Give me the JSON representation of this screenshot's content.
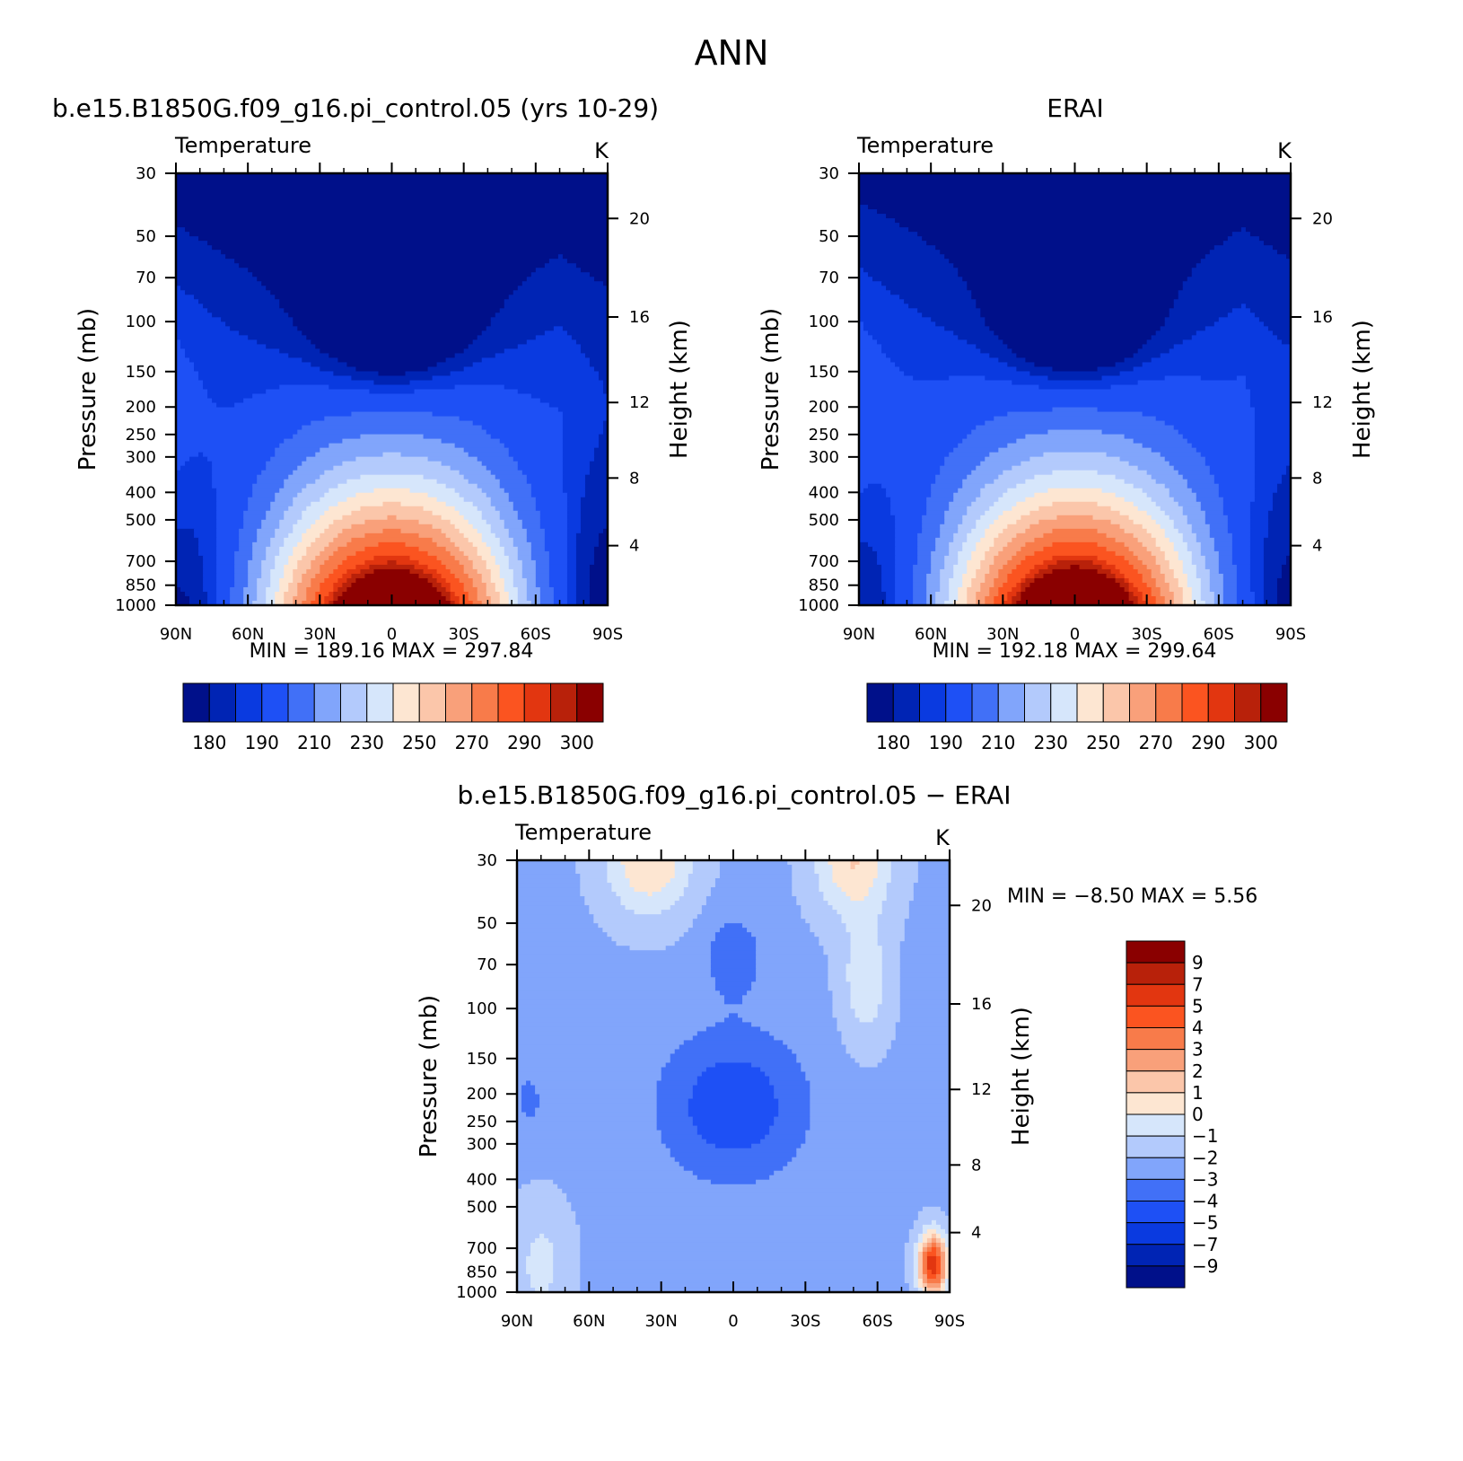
{
  "main_title": "ANN",
  "colors": {
    "abs_levels": [
      "#00108a",
      "#0024b4",
      "#0a3ae0",
      "#1e50f5",
      "#4170f7",
      "#81a5fb",
      "#b3cafc",
      "#d6e6fb",
      "#fde6d2",
      "#fbc6aa",
      "#f9a07a",
      "#f87b4a",
      "#fb5420",
      "#e23610",
      "#b8210a",
      "#8a0000"
    ],
    "diff_levels": [
      "#00108a",
      "#0024b4",
      "#0a3ae0",
      "#1e50f5",
      "#4170f7",
      "#81a5fb",
      "#b3cafc",
      "#d6e6fb",
      "#fde6d2",
      "#fbc6aa",
      "#f9a07a",
      "#f87b4a",
      "#fb5420",
      "#e23610",
      "#b8210a",
      "#8a0000"
    ]
  },
  "chart_data": [
    {
      "type": "contour",
      "panel_title": "b.e15.B1850G.f09_g16.pi_control.05 (yrs 10-29)",
      "variable": "Temperature",
      "units": "K",
      "ylabel": "Pressure (mb)",
      "ylabel2": "Height (km)",
      "x_ticks": [
        "90N",
        "60N",
        "30N",
        "0",
        "30S",
        "60S",
        "90S"
      ],
      "y_ticks": [
        "30",
        "50",
        "70",
        "100",
        "150",
        "200",
        "250",
        "300",
        "400",
        "500",
        "700",
        "850",
        "1000"
      ],
      "y2_ticks": [
        "4",
        "8",
        "12",
        "16",
        "20"
      ],
      "stats": "MIN = 189.16   MAX = 297.84",
      "min": 189.16,
      "max": 297.84,
      "colorbar_labels": [
        "180",
        "190",
        "210",
        "230",
        "250",
        "270",
        "290",
        "300"
      ]
    },
    {
      "type": "contour",
      "panel_title": "ERAI",
      "variable": "Temperature",
      "units": "K",
      "ylabel": "Pressure (mb)",
      "ylabel2": "Height (km)",
      "x_ticks": [
        "90N",
        "60N",
        "30N",
        "0",
        "30S",
        "60S",
        "90S"
      ],
      "y_ticks": [
        "30",
        "50",
        "70",
        "100",
        "150",
        "200",
        "250",
        "300",
        "400",
        "500",
        "700",
        "850",
        "1000"
      ],
      "y2_ticks": [
        "4",
        "8",
        "12",
        "16",
        "20"
      ],
      "stats": "MIN = 192.18   MAX = 299.64",
      "min": 192.18,
      "max": 299.64,
      "colorbar_labels": [
        "180",
        "190",
        "210",
        "230",
        "250",
        "270",
        "290",
        "300"
      ]
    },
    {
      "type": "contour",
      "panel_title": "b.e15.B1850G.f09_g16.pi_control.05 − ERAI",
      "variable": "Temperature",
      "units": "K",
      "ylabel": "Pressure (mb)",
      "ylabel2": "Height (km)",
      "x_ticks": [
        "90N",
        "60N",
        "30N",
        "0",
        "30S",
        "60S",
        "90S"
      ],
      "y_ticks": [
        "30",
        "50",
        "70",
        "100",
        "150",
        "200",
        "250",
        "300",
        "400",
        "500",
        "700",
        "850",
        "1000"
      ],
      "y2_ticks": [
        "4",
        "8",
        "12",
        "16",
        "20"
      ],
      "stats": "MIN =   −8.50   MAX =    5.56",
      "min": -8.5,
      "max": 5.56,
      "colorbar_labels": [
        "9",
        "7",
        "5",
        "4",
        "3",
        "2",
        "1",
        "0",
        "−1",
        "−2",
        "−3",
        "−4",
        "−5",
        "−7",
        "−9"
      ]
    }
  ]
}
